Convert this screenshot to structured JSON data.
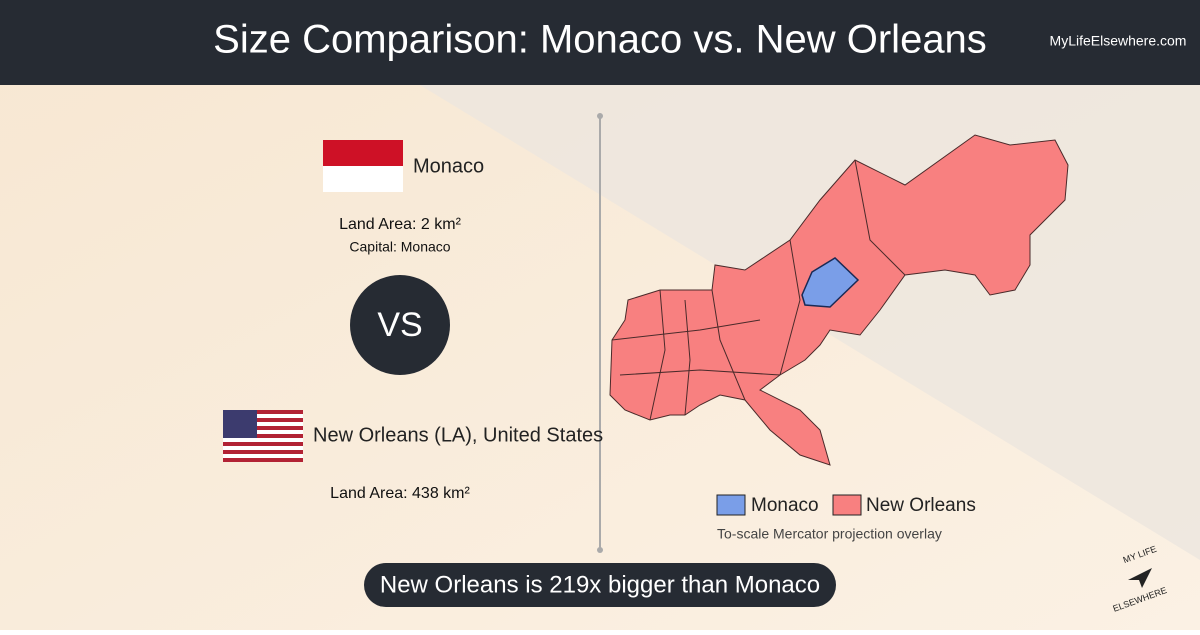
{
  "header": {
    "title": "Size Comparison: Monaco vs. New Orleans",
    "site": "MyLifeElsewhere.com"
  },
  "left": {
    "first": {
      "name": "Monaco",
      "land_area": "Land Area: 2 km²",
      "capital": "Capital: Monaco"
    },
    "vs": "VS",
    "second": {
      "name": "New Orleans (LA), United States",
      "land_area": "Land Area: 438 km²"
    }
  },
  "map": {
    "legend": [
      "Monaco",
      "New Orleans"
    ],
    "note": "To-scale Mercator projection overlay"
  },
  "footer": {
    "statement": "New Orleans is 219x bigger than Monaco",
    "logo": [
      "MY LIFE",
      "ELSEWHERE"
    ]
  }
}
